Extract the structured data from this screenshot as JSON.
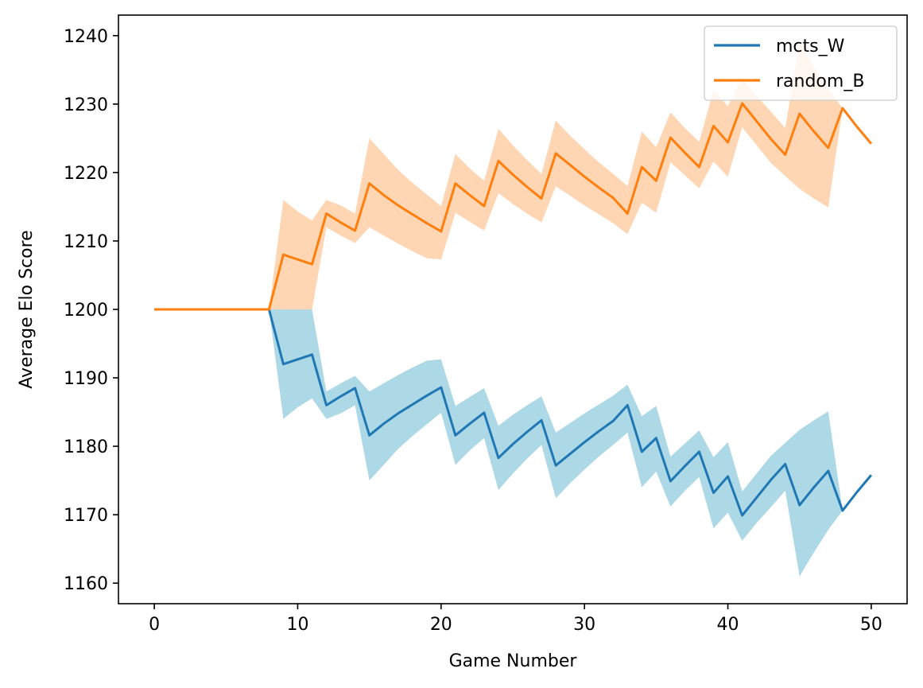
{
  "chart_data": {
    "type": "line",
    "title": "",
    "xlabel": "Game Number",
    "ylabel": "Average Elo Score",
    "xlim": [
      -2.5,
      52.5
    ],
    "ylim": [
      1157,
      1243
    ],
    "xticks": [
      0,
      10,
      20,
      30,
      40,
      50
    ],
    "yticks": [
      1160,
      1170,
      1180,
      1190,
      1200,
      1210,
      1220,
      1230,
      1240
    ],
    "grid": false,
    "legend": "upper right",
    "x": [
      0,
      1,
      2,
      3,
      4,
      5,
      6,
      7,
      8,
      9,
      10,
      11,
      12,
      13,
      14,
      15,
      16,
      17,
      18,
      19,
      20,
      21,
      22,
      23,
      24,
      25,
      26,
      27,
      28,
      29,
      30,
      31,
      32,
      33,
      34,
      35,
      36,
      37,
      38,
      39,
      40,
      41,
      42,
      43,
      44,
      45,
      46,
      47,
      48,
      49,
      50
    ],
    "series": [
      {
        "name": "mcts_W",
        "color": "#1f77b4",
        "band_color": "#add8e6",
        "values": [
          1200,
          1200,
          1200,
          1200,
          1200,
          1200,
          1200,
          1200,
          1200,
          1192,
          1192.7,
          1193.4,
          1186,
          1187.3,
          1188.5,
          1181.6,
          1183.3,
          1184.8,
          1186.1,
          1187.4,
          1188.6,
          1181.6,
          1183.3,
          1184.9,
          1178.3,
          1180.3,
          1182.1,
          1183.8,
          1177.2,
          1178.9,
          1180.6,
          1182.2,
          1183.7,
          1186,
          1179.2,
          1181.2,
          1174.9,
          1177.1,
          1179.2,
          1173.2,
          1175.6,
          1169.9,
          1172.5,
          1175.1,
          1177.4,
          1171.4,
          1174,
          1176.4,
          1170.6,
          1173.3,
          1175.8
        ],
        "lower": [
          1200,
          1200,
          1200,
          1200,
          1200,
          1200,
          1200,
          1200,
          1200,
          1184,
          1185.7,
          1187,
          1184,
          1184.8,
          1186,
          1175,
          1177.3,
          1179.6,
          1181.5,
          1183.2,
          1184.9,
          1177.3,
          1179.4,
          1181.2,
          1173.6,
          1176,
          1178.2,
          1180.2,
          1172.4,
          1174.6,
          1176.6,
          1178.5,
          1180.2,
          1182,
          1174,
          1176.3,
          1171.2,
          1173.5,
          1175.5,
          1168,
          1170.3,
          1166.2,
          1168.8,
          1171.1,
          1173.5,
          1161,
          1164.5,
          1167.8,
          1170.6,
          1173.3,
          1175.8
        ],
        "upper": [
          1200,
          1200,
          1200,
          1200,
          1200,
          1200,
          1200,
          1200,
          1200,
          1200,
          1200,
          1200,
          1188,
          1189.2,
          1190.3,
          1188,
          1189.2,
          1190.4,
          1191.5,
          1192.5,
          1192.7,
          1185.9,
          1187.2,
          1188.5,
          1183,
          1184.6,
          1186,
          1187.3,
          1182,
          1183.4,
          1184.8,
          1186.1,
          1187.4,
          1189,
          1184.4,
          1185.9,
          1178.5,
          1180.4,
          1182.3,
          1178.4,
          1180.6,
          1173.4,
          1176,
          1178.6,
          1180.5,
          1182.4,
          1183.8,
          1185.1,
          1170.6,
          1173.3,
          1175.8
        ]
      },
      {
        "name": "random_B",
        "color": "#ff7f0e",
        "band_color": "#ffd6b3",
        "values": [
          1200,
          1200,
          1200,
          1200,
          1200,
          1200,
          1200,
          1200,
          1200,
          1208,
          1207.3,
          1206.6,
          1214,
          1212.7,
          1211.5,
          1218.4,
          1216.7,
          1215.2,
          1213.9,
          1212.6,
          1211.4,
          1218.4,
          1216.7,
          1215.1,
          1221.7,
          1219.7,
          1217.9,
          1216.2,
          1222.8,
          1221.1,
          1219.4,
          1217.8,
          1216.3,
          1214,
          1220.8,
          1218.8,
          1225.1,
          1222.9,
          1220.8,
          1226.8,
          1224.4,
          1230.1,
          1227.5,
          1224.9,
          1222.6,
          1228.6,
          1226,
          1223.6,
          1229.4,
          1226.7,
          1224.2
        ],
        "lower": [
          1200,
          1200,
          1200,
          1200,
          1200,
          1200,
          1200,
          1200,
          1200,
          1200,
          1200,
          1200,
          1212,
          1210.8,
          1209.7,
          1212,
          1210.8,
          1209.6,
          1208.5,
          1207.5,
          1207.3,
          1214.1,
          1212.8,
          1211.5,
          1217,
          1215.4,
          1214,
          1212.7,
          1218,
          1216.6,
          1215.2,
          1213.9,
          1212.6,
          1211,
          1215.6,
          1214.1,
          1221.5,
          1219.6,
          1217.7,
          1221.6,
          1219.4,
          1226.6,
          1224,
          1221.4,
          1219.5,
          1217.6,
          1216.2,
          1214.9,
          1229.4,
          1226.7,
          1224.2
        ],
        "upper": [
          1200,
          1200,
          1200,
          1200,
          1200,
          1200,
          1200,
          1200,
          1200,
          1216,
          1214.3,
          1213,
          1216,
          1215.2,
          1214,
          1225,
          1222.7,
          1220.4,
          1218.5,
          1216.8,
          1215.1,
          1222.7,
          1220.6,
          1218.8,
          1226.4,
          1224,
          1221.8,
          1219.8,
          1227.6,
          1225.4,
          1223.4,
          1221.5,
          1219.8,
          1218,
          1226,
          1223.7,
          1228.8,
          1226.5,
          1224.5,
          1232,
          1229.7,
          1233.8,
          1231.2,
          1228.9,
          1226.5,
          1239,
          1235.5,
          1232.2,
          1229.4,
          1226.7,
          1224.2
        ]
      }
    ]
  }
}
